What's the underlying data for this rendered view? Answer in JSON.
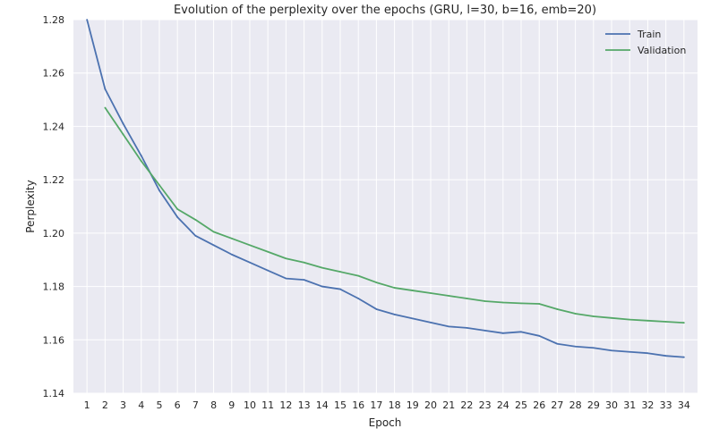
{
  "chart_data": {
    "type": "line",
    "title": "Evolution of the perplexity over the epochs (GRU, l=30, b=16, emb=20)",
    "xlabel": "Epoch",
    "ylabel": "Perplexity",
    "xlim": [
      0.25,
      34.75
    ],
    "ylim": [
      1.14,
      1.28
    ],
    "xticks": [
      1,
      2,
      3,
      4,
      5,
      6,
      7,
      8,
      9,
      10,
      11,
      12,
      13,
      14,
      15,
      16,
      17,
      18,
      19,
      20,
      21,
      22,
      23,
      24,
      25,
      26,
      27,
      28,
      29,
      30,
      31,
      32,
      33,
      34
    ],
    "yticks": [
      1.14,
      1.16,
      1.18,
      1.2,
      1.22,
      1.24,
      1.26,
      1.28
    ],
    "ytick_labels": [
      "1.14",
      "1.16",
      "1.18",
      "1.20",
      "1.22",
      "1.24",
      "1.26",
      "1.28"
    ],
    "grid": true,
    "legend_position": "top-right",
    "series": [
      {
        "name": "Train",
        "color": "#4c72b0",
        "x": [
          1,
          2,
          3,
          4,
          5,
          6,
          7,
          8,
          9,
          10,
          11,
          12,
          13,
          14,
          15,
          16,
          17,
          18,
          19,
          20,
          21,
          22,
          23,
          24,
          25,
          26,
          27,
          28,
          29,
          30,
          31,
          32,
          33,
          34
        ],
        "values": [
          1.28,
          1.254,
          1.241,
          1.229,
          1.216,
          1.206,
          1.199,
          1.1955,
          1.192,
          1.189,
          1.186,
          1.183,
          1.1825,
          1.18,
          1.179,
          1.1755,
          1.1715,
          1.1695,
          1.168,
          1.1665,
          1.165,
          1.1645,
          1.1635,
          1.1625,
          1.163,
          1.1615,
          1.1585,
          1.1575,
          1.157,
          1.156,
          1.1555,
          1.155,
          1.154,
          1.1535
        ]
      },
      {
        "name": "Validation",
        "color": "#55a868",
        "x": [
          2,
          3,
          4,
          5,
          6,
          7,
          8,
          9,
          10,
          11,
          12,
          13,
          14,
          15,
          16,
          17,
          18,
          19,
          20,
          21,
          22,
          23,
          24,
          25,
          26,
          27,
          28,
          29,
          30,
          31,
          32,
          33,
          34
        ],
        "values": [
          1.247,
          1.237,
          1.227,
          1.218,
          1.209,
          1.205,
          1.2005,
          1.198,
          1.1955,
          1.193,
          1.1905,
          1.189,
          1.187,
          1.1855,
          1.184,
          1.1815,
          1.1795,
          1.1785,
          1.1775,
          1.1765,
          1.1755,
          1.1745,
          1.174,
          1.1737,
          1.1735,
          1.1715,
          1.1698,
          1.1688,
          1.1682,
          1.1676,
          1.1672,
          1.1668,
          1.1664
        ]
      }
    ]
  }
}
